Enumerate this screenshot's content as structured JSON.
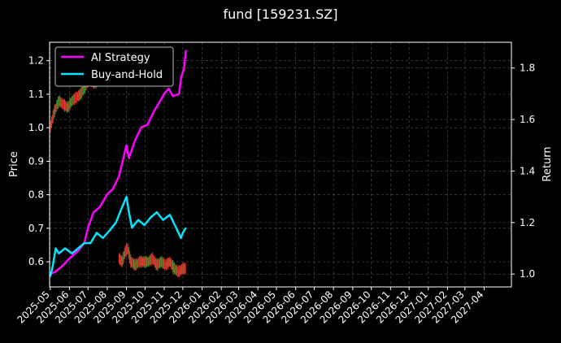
{
  "chart_data": {
    "type": "line",
    "title": "fund [159231.SZ]",
    "ylabel_left": "Price",
    "ylabel_right": "Return",
    "x_ticks": [
      "2025-05",
      "2025-06",
      "2025-07",
      "2025-08",
      "2025-09",
      "2025-10",
      "2025-11",
      "2025-12",
      "2026-01",
      "2026-02",
      "2026-03",
      "2026-04",
      "2026-05",
      "2026-06",
      "2026-07",
      "2026-08",
      "2026-09",
      "2026-10",
      "2026-11",
      "2026-12",
      "2027-01",
      "2027-02",
      "2027-03",
      "2027-04"
    ],
    "xlim": [
      "2025-04-30",
      "2027-05-15"
    ],
    "ylim_left": [
      0.525,
      1.255
    ],
    "ylim_right": [
      0.95,
      1.9
    ],
    "y_ticks_left": [
      "0.6",
      "0.7",
      "0.8",
      "0.9",
      "1.0",
      "1.1",
      "1.2"
    ],
    "y_ticks_right": [
      "1.0",
      "1.2",
      "1.4",
      "1.6",
      "1.8"
    ],
    "grid": true,
    "legend_position": "top-left",
    "colors": {
      "background": "#000000",
      "ai_strategy": "#ff00ff",
      "buy_and_hold": "#00e5ff",
      "candle_up": "#d62728",
      "candle_down": "#2ca02c",
      "grid": "#555555"
    },
    "series": [
      {
        "name": "AI Strategy",
        "axis": "right",
        "points": [
          [
            "2025-05-01",
            1.0
          ],
          [
            "2025-05-10",
            1.01
          ],
          [
            "2025-05-20",
            1.03
          ],
          [
            "2025-06-01",
            1.06
          ],
          [
            "2025-06-15",
            1.09
          ],
          [
            "2025-06-25",
            1.12
          ],
          [
            "2025-07-01",
            1.18
          ],
          [
            "2025-07-10",
            1.24
          ],
          [
            "2025-07-20",
            1.26
          ],
          [
            "2025-08-01",
            1.31
          ],
          [
            "2025-08-10",
            1.33
          ],
          [
            "2025-08-20",
            1.38
          ],
          [
            "2025-08-28",
            1.46
          ],
          [
            "2025-09-01",
            1.5
          ],
          [
            "2025-09-05",
            1.45
          ],
          [
            "2025-09-15",
            1.52
          ],
          [
            "2025-09-25",
            1.57
          ],
          [
            "2025-10-05",
            1.58
          ],
          [
            "2025-10-15",
            1.63
          ],
          [
            "2025-10-25",
            1.67
          ],
          [
            "2025-11-01",
            1.7
          ],
          [
            "2025-11-08",
            1.72
          ],
          [
            "2025-11-15",
            1.69
          ],
          [
            "2025-11-25",
            1.7
          ],
          [
            "2025-11-28",
            1.76
          ],
          [
            "2025-12-03",
            1.8
          ],
          [
            "2025-12-06",
            1.87
          ]
        ]
      },
      {
        "name": "Buy-and-Hold",
        "axis": "right",
        "points": [
          [
            "2025-05-01",
            0.99
          ],
          [
            "2025-05-05",
            1.03
          ],
          [
            "2025-05-10",
            1.1
          ],
          [
            "2025-05-15",
            1.08
          ],
          [
            "2025-05-25",
            1.1
          ],
          [
            "2025-06-05",
            1.08
          ],
          [
            "2025-06-15",
            1.1
          ],
          [
            "2025-06-25",
            1.12
          ],
          [
            "2025-07-05",
            1.12
          ],
          [
            "2025-07-15",
            1.16
          ],
          [
            "2025-07-25",
            1.14
          ],
          [
            "2025-08-05",
            1.17
          ],
          [
            "2025-08-15",
            1.2
          ],
          [
            "2025-08-25",
            1.26
          ],
          [
            "2025-09-01",
            1.3
          ],
          [
            "2025-09-05",
            1.24
          ],
          [
            "2025-09-10",
            1.18
          ],
          [
            "2025-09-20",
            1.21
          ],
          [
            "2025-09-30",
            1.19
          ],
          [
            "2025-10-10",
            1.22
          ],
          [
            "2025-10-20",
            1.24
          ],
          [
            "2025-10-30",
            1.21
          ],
          [
            "2025-11-10",
            1.23
          ],
          [
            "2025-11-20",
            1.18
          ],
          [
            "2025-11-28",
            1.14
          ],
          [
            "2025-12-01",
            1.16
          ],
          [
            "2025-12-06",
            1.18
          ]
        ]
      }
    ],
    "price_candles": [
      {
        "segment": "2025-05-01 to 2025-05-31",
        "low": 0.98,
        "high": 1.1
      },
      {
        "segment": "2025-06-01 to 2025-07-20",
        "low": 1.05,
        "high": 1.2
      },
      {
        "segment": "2025-08-20 to 2025-09-05",
        "low": 0.59,
        "high": 0.65
      },
      {
        "segment": "2025-09-05 to 2025-12-06",
        "low": 0.55,
        "high": 0.61
      }
    ],
    "price_points": [
      [
        "2025-05-01",
        1.0
      ],
      [
        "2025-05-08",
        1.05
      ],
      [
        "2025-05-15",
        1.08
      ],
      [
        "2025-05-22",
        1.07
      ],
      [
        "2025-05-29",
        1.06
      ],
      [
        "2025-06-05",
        1.08
      ],
      [
        "2025-06-12",
        1.09
      ],
      [
        "2025-06-19",
        1.1
      ],
      [
        "2025-06-26",
        1.12
      ],
      [
        "2025-07-03",
        1.15
      ],
      [
        "2025-07-10",
        1.13
      ],
      [
        "2025-07-17",
        1.14
      ],
      [
        "2025-08-20",
        0.61
      ],
      [
        "2025-08-25",
        0.6
      ],
      [
        "2025-08-30",
        0.63
      ],
      [
        "2025-09-03",
        0.64
      ],
      [
        "2025-09-08",
        0.6
      ],
      [
        "2025-09-15",
        0.59
      ],
      [
        "2025-09-22",
        0.6
      ],
      [
        "2025-09-29",
        0.6
      ],
      [
        "2025-10-06",
        0.6
      ],
      [
        "2025-10-13",
        0.61
      ],
      [
        "2025-10-20",
        0.59
      ],
      [
        "2025-10-27",
        0.6
      ],
      [
        "2025-11-03",
        0.59
      ],
      [
        "2025-11-10",
        0.6
      ],
      [
        "2025-11-17",
        0.58
      ],
      [
        "2025-11-24",
        0.57
      ],
      [
        "2025-12-01",
        0.58
      ],
      [
        "2025-12-06",
        0.58
      ]
    ]
  }
}
